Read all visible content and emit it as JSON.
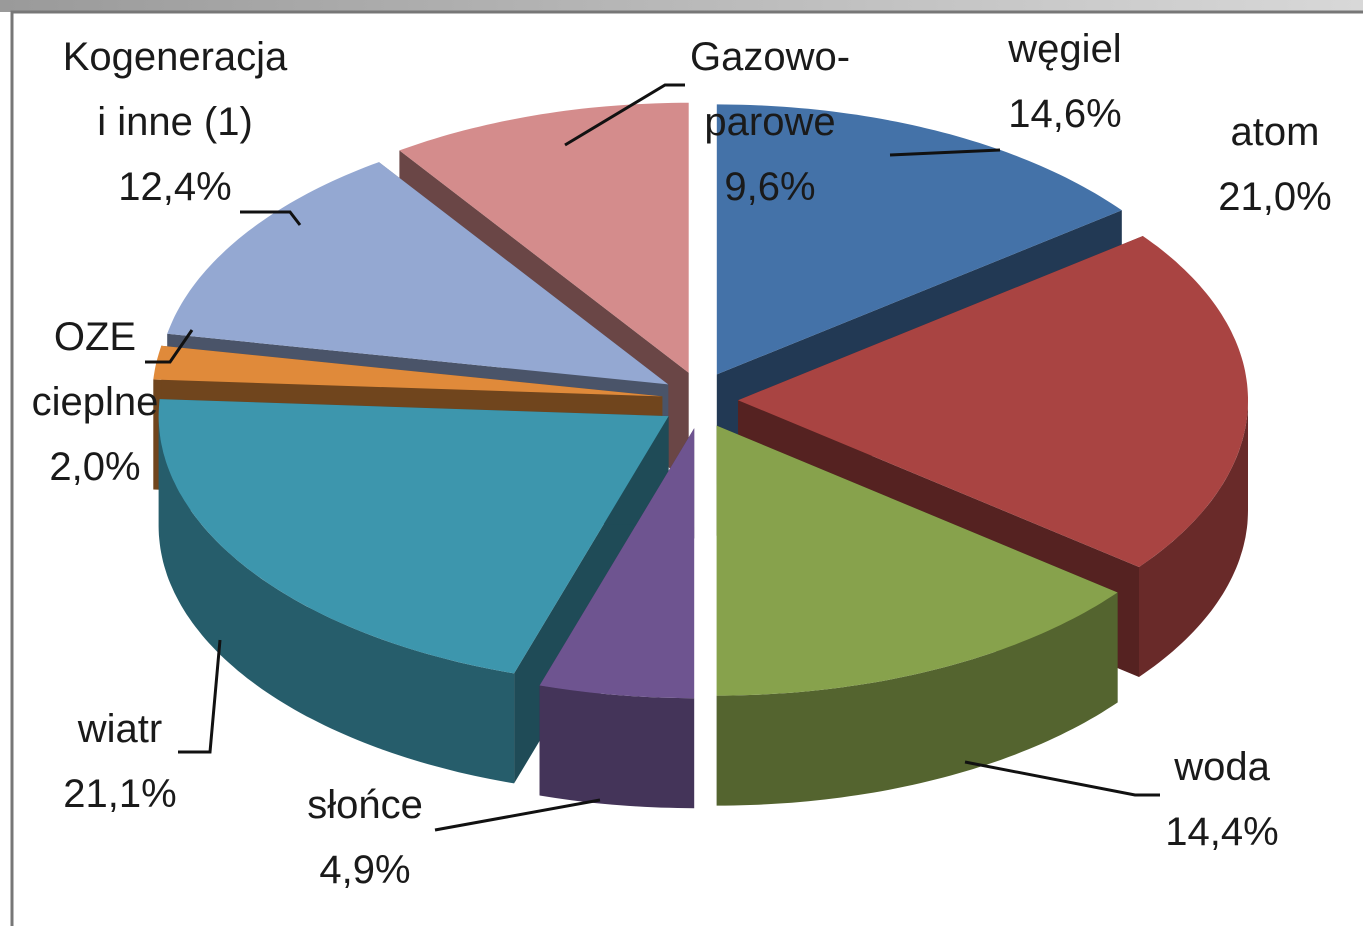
{
  "chart_data": {
    "type": "pie3d",
    "categories": [
      "węgiel",
      "atom",
      "woda",
      "słońce",
      "wiatr",
      "OZE cieplne",
      "Kogeneracja i inne (1)",
      "Gazowo-parowe"
    ],
    "values": [
      14.6,
      21.0,
      14.4,
      4.9,
      21.1,
      2.0,
      12.4,
      9.6
    ],
    "value_labels": [
      "14,6%",
      "21,0%",
      "14,4%",
      "4,9%",
      "21,1%",
      "2,0%",
      "12,4%",
      "9,6%"
    ],
    "colors": [
      "#4472a8",
      "#a94442",
      "#87a24c",
      "#6e5490",
      "#3d96ad",
      "#e08a3a",
      "#94a8d2",
      "#d48c8c"
    ]
  }
}
